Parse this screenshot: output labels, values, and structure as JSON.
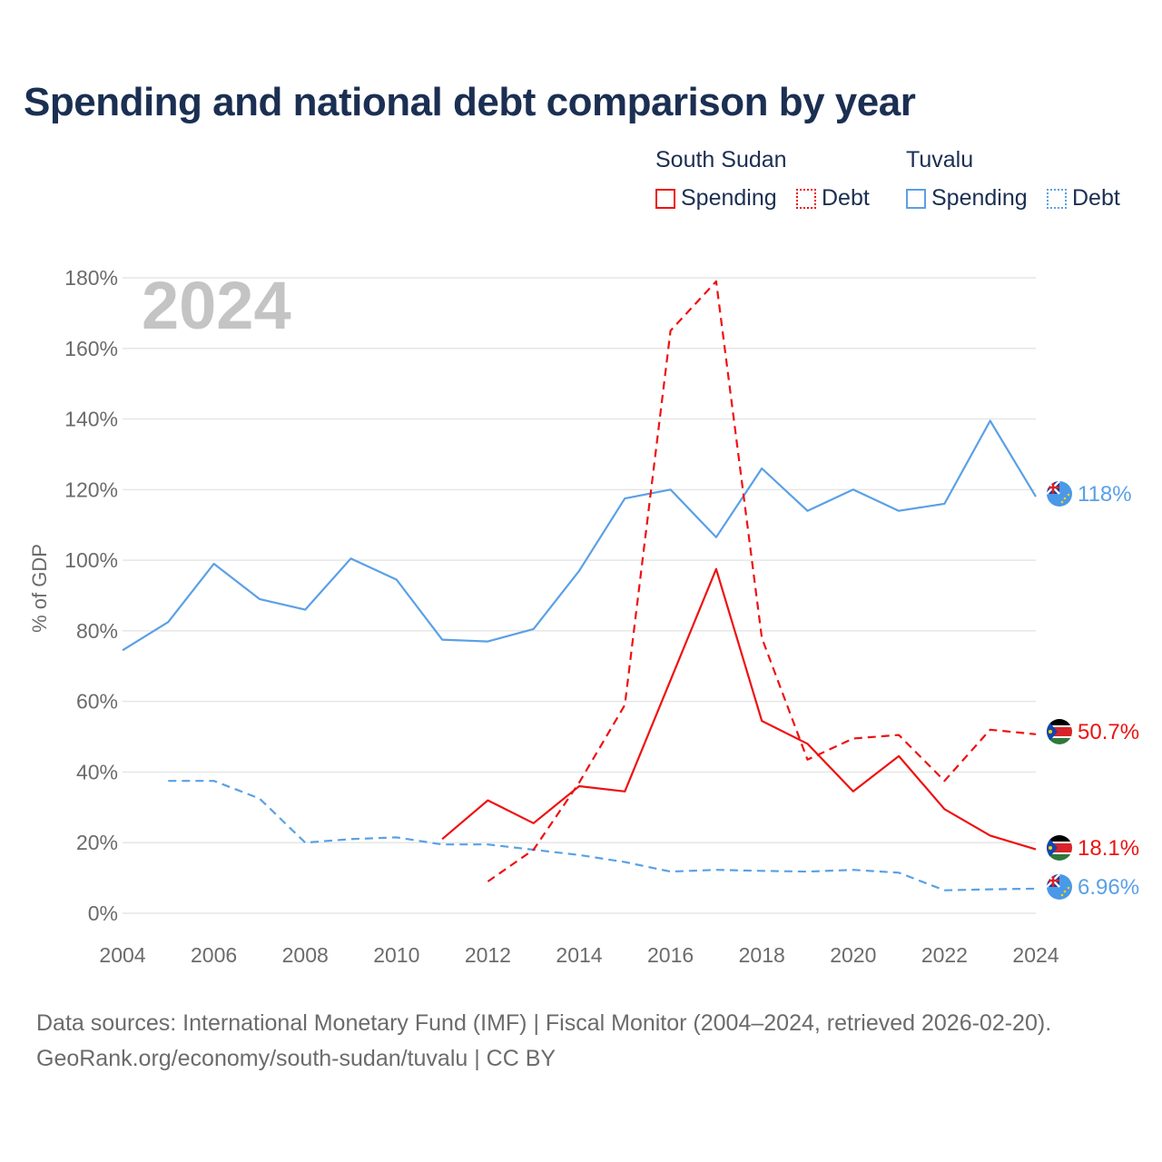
{
  "title": "Spending and national debt comparison by year",
  "legend": {
    "groups": [
      {
        "country": "South Sudan",
        "items": [
          {
            "label": "Spending",
            "style": "solid"
          },
          {
            "label": "Debt",
            "style": "dotted"
          }
        ],
        "color": "#ee1111"
      },
      {
        "country": "Tuvalu",
        "items": [
          {
            "label": "Spending",
            "style": "solid"
          },
          {
            "label": "Debt",
            "style": "dotted"
          }
        ],
        "color": "#5aa0e6"
      }
    ]
  },
  "year_watermark": "2024",
  "source": {
    "line1": "Data sources: International Monetary Fund (IMF) | Fiscal Monitor (2004–2024, retrieved 2026-02-20).",
    "line2": "GeoRank.org/economy/south-sudan/tuvalu | CC BY"
  },
  "chart_data": {
    "type": "line",
    "title": "Spending and national debt comparison by year",
    "xlabel": "",
    "ylabel": "% of GDP",
    "xlim": [
      2004,
      2024
    ],
    "ylim": [
      0,
      180
    ],
    "x_ticks": [
      "2004",
      "2006",
      "2008",
      "2010",
      "2012",
      "2014",
      "2016",
      "2018",
      "2020",
      "2022",
      "2024"
    ],
    "y_ticks": [
      "0%",
      "20%",
      "40%",
      "60%",
      "80%",
      "100%",
      "120%",
      "140%",
      "160%",
      "180%"
    ],
    "grid": true,
    "series": [
      {
        "name": "Tuvalu Spending",
        "country": "Tuvalu",
        "metric": "Spending",
        "color": "#5aa0e6",
        "dash": "solid",
        "x": [
          2004,
          2005,
          2006,
          2007,
          2008,
          2009,
          2010,
          2011,
          2012,
          2013,
          2014,
          2015,
          2016,
          2017,
          2018,
          2019,
          2020,
          2021,
          2022,
          2023,
          2024
        ],
        "values": [
          74.5,
          82.5,
          99,
          89,
          86,
          100.5,
          94.5,
          77.5,
          77,
          80.5,
          97,
          117.5,
          120,
          106.5,
          126,
          114,
          120,
          114,
          116,
          139.5,
          118
        ],
        "end_label": "118%"
      },
      {
        "name": "Tuvalu Debt",
        "country": "Tuvalu",
        "metric": "Debt",
        "color": "#5aa0e6",
        "dash": "dashed",
        "x": [
          2005,
          2006,
          2007,
          2008,
          2009,
          2010,
          2011,
          2012,
          2013,
          2014,
          2015,
          2016,
          2017,
          2018,
          2019,
          2020,
          2021,
          2022,
          2023,
          2024
        ],
        "values": [
          37.5,
          37.5,
          32.5,
          20,
          21,
          21.5,
          19.5,
          19.5,
          18,
          16.5,
          14.5,
          11.8,
          12.3,
          12,
          11.8,
          12.3,
          11.5,
          6.5,
          6.8,
          6.96
        ],
        "end_label": "6.96%"
      },
      {
        "name": "South Sudan Spending",
        "country": "South Sudan",
        "metric": "Spending",
        "color": "#ee1111",
        "dash": "solid",
        "x": [
          2011,
          2012,
          2013,
          2014,
          2015,
          2016,
          2017,
          2018,
          2019,
          2020,
          2021,
          2022,
          2023,
          2024
        ],
        "values": [
          21,
          32,
          25.5,
          36,
          34.5,
          66,
          97.5,
          54.5,
          48,
          34.5,
          44.5,
          29.5,
          22,
          18.1
        ],
        "end_label": "18.1%"
      },
      {
        "name": "South Sudan Debt",
        "country": "South Sudan",
        "metric": "Debt",
        "color": "#ee1111",
        "dash": "dashed",
        "x": [
          2012,
          2013,
          2014,
          2015,
          2016,
          2017,
          2018,
          2019,
          2020,
          2021,
          2022,
          2023,
          2024
        ],
        "values": [
          9,
          18,
          37,
          59,
          165,
          179,
          78,
          43.5,
          49.5,
          50.5,
          37.5,
          52,
          50.7
        ],
        "end_label": "50.7%"
      }
    ]
  }
}
